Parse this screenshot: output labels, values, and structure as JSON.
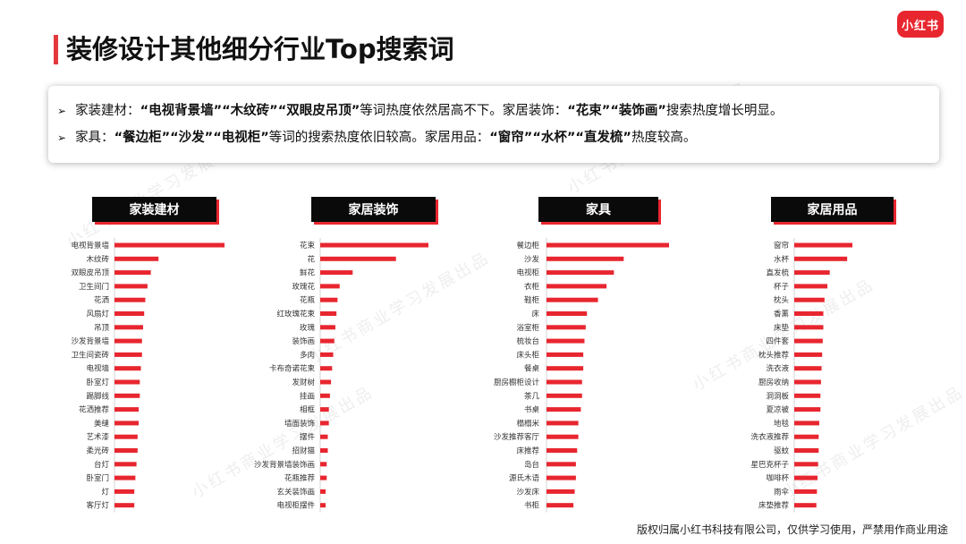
{
  "page": {
    "title": "装修设计其他细分行业Top搜索词",
    "logo_text": "小红书",
    "footer": "版权归属小红书科技有限公司，仅供学习使用，严禁用作商业用途",
    "watermark": "小红书商业学习发展出品",
    "accent_color": "#e8262f"
  },
  "summary": {
    "arrow": "➢",
    "line1": [
      {
        "t": "家装建材：",
        "b": false
      },
      {
        "t": "“电视背景墙”",
        "b": true
      },
      {
        "t": "“木纹砖”",
        "b": true
      },
      {
        "t": "“双眼皮吊顶”",
        "b": true
      },
      {
        "t": "等词热度依然居高不下。家居装饰：",
        "b": false
      },
      {
        "t": "“花束”",
        "b": true
      },
      {
        "t": "“装饰画”",
        "b": true
      },
      {
        "t": "搜索热度增长明显。",
        "b": false
      }
    ],
    "line2": [
      {
        "t": "家具：",
        "b": false
      },
      {
        "t": "“餐边柜”",
        "b": true
      },
      {
        "t": "“沙发”",
        "b": true
      },
      {
        "t": "“电视柜”",
        "b": true
      },
      {
        "t": "等词的搜索热度依旧较高。家居用品：",
        "b": false
      },
      {
        "t": "“窗帘”",
        "b": true
      },
      {
        "t": "“水杯”",
        "b": true
      },
      {
        "t": "“直发梳”",
        "b": true
      },
      {
        "t": "热度较高。",
        "b": false
      }
    ]
  },
  "chart_data": [
    {
      "type": "bar",
      "orientation": "horizontal",
      "title": "家装建材",
      "bar_color": "#e8262f",
      "categories": [
        "电视背景墙",
        "木纹砖",
        "双眼皮吊顶",
        "卫生间门",
        "花洒",
        "风扇灯",
        "吊顶",
        "沙发背景墙",
        "卫生间瓷砖",
        "电视墙",
        "卧室灯",
        "踢脚线",
        "花洒推荐",
        "美缝",
        "艺术漆",
        "柔光砖",
        "台灯",
        "卧室门",
        "灯",
        "客厅灯"
      ],
      "values": [
        100,
        40,
        33,
        30,
        28,
        27,
        26,
        25,
        25,
        24,
        23,
        23,
        22,
        22,
        21,
        21,
        20,
        19,
        18,
        18
      ]
    },
    {
      "type": "bar",
      "orientation": "horizontal",
      "title": "家居装饰",
      "bar_color": "#e8262f",
      "categories": [
        "花束",
        "花",
        "鲜花",
        "玫瑰花",
        "花瓶",
        "红玫瑰花束",
        "玫瑰",
        "装饰画",
        "多肉",
        "卡布奇诺花束",
        "发财树",
        "挂画",
        "相框",
        "墙面装饰",
        "摆件",
        "招财猫",
        "沙发背景墙装饰画",
        "花瓶推荐",
        "玄关装饰画",
        "电视柜摆件"
      ],
      "values": [
        100,
        70,
        30,
        18,
        16,
        15,
        14,
        13,
        12,
        11,
        10,
        9,
        8,
        8,
        7,
        7,
        6,
        6,
        5,
        5
      ]
    },
    {
      "type": "bar",
      "orientation": "horizontal",
      "title": "家具",
      "bar_color": "#e8262f",
      "categories": [
        "餐边柜",
        "沙发",
        "电视柜",
        "衣柜",
        "鞋柜",
        "床",
        "浴室柜",
        "梳妆台",
        "床头柜",
        "餐桌",
        "厨房橱柜设计",
        "茶几",
        "书桌",
        "榻榻米",
        "沙发推荐客厅",
        "床推荐",
        "岛台",
        "源氏木语",
        "沙发床",
        "书柜"
      ],
      "values": [
        100,
        63,
        55,
        49,
        42,
        33,
        32,
        31,
        30,
        30,
        29,
        29,
        28,
        26,
        26,
        25,
        24,
        24,
        23,
        22
      ]
    },
    {
      "type": "bar",
      "orientation": "horizontal",
      "title": "家居用品",
      "bar_color": "#e8262f",
      "categories": [
        "窗帘",
        "水杯",
        "直发梳",
        "杯子",
        "枕头",
        "香薰",
        "床垫",
        "四件套",
        "枕头推荐",
        "洗衣液",
        "厨房收纳",
        "洞洞板",
        "夏凉被",
        "地毯",
        "洗衣液推荐",
        "驱蚊",
        "星巴克杯子",
        "咖啡杯",
        "雨伞",
        "床垫推荐"
      ],
      "values": [
        100,
        91,
        61,
        57,
        52,
        50,
        50,
        49,
        48,
        47,
        46,
        45,
        45,
        43,
        42,
        42,
        41,
        40,
        39,
        38
      ]
    }
  ]
}
